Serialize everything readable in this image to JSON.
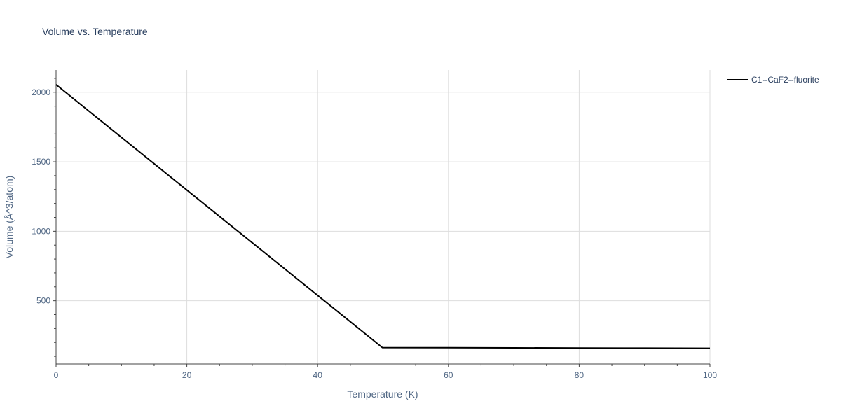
{
  "chart_data": {
    "type": "line",
    "title": "Volume vs. Temperature",
    "xlabel": "Temperature (K)",
    "ylabel": "Volume (Å^3/atom)",
    "xlim": [
      0,
      100
    ],
    "ylim": [
      45,
      2160
    ],
    "x_ticks": [
      0,
      20,
      40,
      60,
      80,
      100
    ],
    "y_ticks": [
      500,
      1000,
      1500,
      2000
    ],
    "grid": true,
    "legend_position": "top-right",
    "series": [
      {
        "name": "C1--CaF2--fluorite",
        "color": "#000000",
        "x": [
          0,
          49.9,
          60,
          70,
          80,
          90,
          100
        ],
        "y": [
          2055,
          163,
          162,
          161,
          160,
          159,
          158
        ]
      }
    ]
  }
}
